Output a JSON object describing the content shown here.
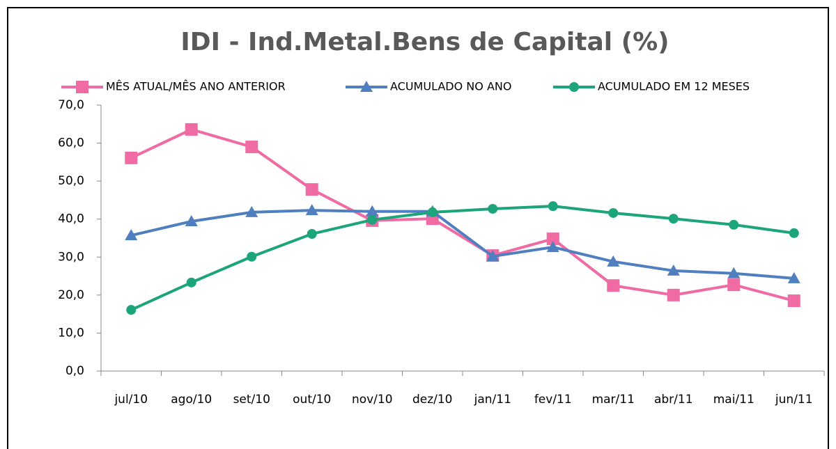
{
  "chart_data": {
    "type": "line",
    "title": "IDI - Ind.Metal.Bens de Capital (%)",
    "categories": [
      "jul/10",
      "ago/10",
      "set/10",
      "out/10",
      "nov/10",
      "dez/10",
      "jan/11",
      "fev/11",
      "mar/11",
      "abr/11",
      "mai/11",
      "jun/11"
    ],
    "series": [
      {
        "name": "MÊS ATUAL/MÊS ANO ANTERIOR",
        "color": "#f06ba3",
        "marker": "square",
        "values": [
          56.1,
          63.6,
          59.0,
          47.8,
          39.6,
          40.1,
          30.4,
          34.8,
          22.5,
          20.0,
          22.7,
          18.5
        ]
      },
      {
        "name": "ACUMULADO NO ANO",
        "color": "#4f7fbf",
        "marker": "triangle",
        "values": [
          35.7,
          39.4,
          41.8,
          42.3,
          42.0,
          42.0,
          30.2,
          32.6,
          28.8,
          26.4,
          25.7,
          24.4
        ]
      },
      {
        "name": "ACUMULADO EM 12 MESES",
        "color": "#1ca57a",
        "marker": "circle",
        "values": [
          16.1,
          23.3,
          30.1,
          36.1,
          39.8,
          41.8,
          42.7,
          43.4,
          41.6,
          40.1,
          38.5,
          36.3
        ]
      }
    ],
    "ylim": [
      0,
      70
    ],
    "yticks": [
      {
        "value": 0,
        "label": "0,0"
      },
      {
        "value": 10,
        "label": "10,0"
      },
      {
        "value": 20,
        "label": "20,0"
      },
      {
        "value": 30,
        "label": "30,0"
      },
      {
        "value": 40,
        "label": "40,0"
      },
      {
        "value": 50,
        "label": "50,0"
      },
      {
        "value": 60,
        "label": "60,0"
      },
      {
        "value": 70,
        "label": "70,0"
      }
    ],
    "grid": false,
    "legend": "top"
  }
}
